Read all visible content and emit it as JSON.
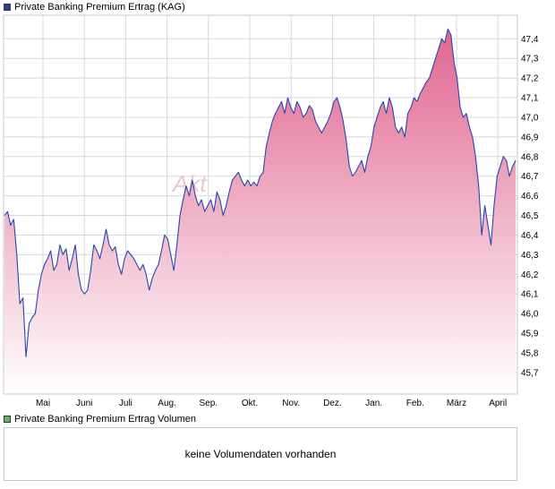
{
  "price_panel": {
    "legend_label": "Private Banking Premium Ertrag (KAG)",
    "legend_color": "#1f3f9f"
  },
  "volume_panel": {
    "legend_label": "Private Banking Premium Ertrag Volumen",
    "legend_color": "#5fb85f",
    "message": "keine Volumendaten vorhanden"
  },
  "watermark": "Akt",
  "colors": {
    "line": "#2a45b0",
    "fill_top": "#e06590",
    "fill_bottom": "#ffffff",
    "grid": "#d8d8d8",
    "frame": "#c8c8c8"
  },
  "chart_data": {
    "type": "area",
    "title": "Private Banking Premium Ertrag (KAG)",
    "x_ticks": [
      "Mai",
      "Juni",
      "Juli",
      "Aug.",
      "Sep.",
      "Okt.",
      "Nov.",
      "Dez.",
      "Jan.",
      "Feb.",
      "März",
      "April"
    ],
    "y_ticks": [
      "45,7",
      "45,8",
      "45,9",
      "46,0",
      "46,1",
      "46,2",
      "46,3",
      "46,4",
      "46,5",
      "46,6",
      "46,7",
      "46,8",
      "46,9",
      "47,0",
      "47,1",
      "47,2",
      "47,3",
      "47,4"
    ],
    "ylim": [
      45.59,
      47.52
    ],
    "grid": true,
    "legend": "top-left",
    "series": [
      {
        "name": "Private Banking Premium Ertrag (KAG)",
        "values": [
          46.5,
          46.52,
          46.45,
          46.48,
          46.3,
          46.05,
          46.08,
          45.78,
          45.95,
          45.98,
          46.0,
          46.12,
          46.2,
          46.25,
          46.28,
          46.32,
          46.22,
          46.25,
          46.35,
          46.3,
          46.33,
          46.22,
          46.28,
          46.35,
          46.2,
          46.12,
          46.1,
          46.12,
          46.22,
          46.35,
          46.32,
          46.28,
          46.35,
          46.43,
          46.35,
          46.32,
          46.34,
          46.25,
          46.2,
          46.28,
          46.32,
          46.3,
          46.28,
          46.25,
          46.22,
          46.25,
          46.2,
          46.12,
          46.18,
          46.22,
          46.25,
          46.32,
          46.4,
          46.38,
          46.3,
          46.22,
          46.35,
          46.5,
          46.58,
          46.65,
          46.6,
          46.68,
          46.6,
          46.55,
          46.58,
          46.52,
          46.55,
          46.58,
          46.52,
          46.62,
          46.58,
          46.5,
          46.55,
          46.62,
          46.68,
          46.7,
          46.72,
          46.68,
          46.65,
          46.68,
          46.65,
          46.67,
          46.65,
          46.7,
          46.72,
          46.85,
          46.92,
          46.98,
          47.02,
          47.05,
          47.08,
          47.02,
          47.1,
          47.05,
          47.02,
          47.08,
          47.05,
          47.0,
          47.02,
          47.06,
          47.04,
          46.98,
          46.95,
          46.92,
          46.95,
          46.98,
          47.02,
          47.08,
          47.1,
          47.05,
          46.98,
          46.88,
          46.75,
          46.7,
          46.72,
          46.75,
          46.78,
          46.72,
          46.8,
          46.85,
          46.95,
          47.0,
          47.05,
          47.08,
          47.02,
          47.1,
          47.05,
          46.95,
          46.92,
          46.95,
          46.9,
          47.02,
          47.05,
          47.1,
          47.08,
          47.12,
          47.15,
          47.18,
          47.2,
          47.25,
          47.3,
          47.35,
          47.4,
          47.38,
          47.45,
          47.42,
          47.28,
          47.2,
          47.05,
          47.0,
          47.02,
          46.95,
          46.9,
          46.8,
          46.65,
          46.4,
          46.55,
          46.45,
          46.35,
          46.55,
          46.7,
          46.75,
          46.8,
          46.78,
          46.7,
          46.75,
          46.78
        ]
      }
    ]
  }
}
